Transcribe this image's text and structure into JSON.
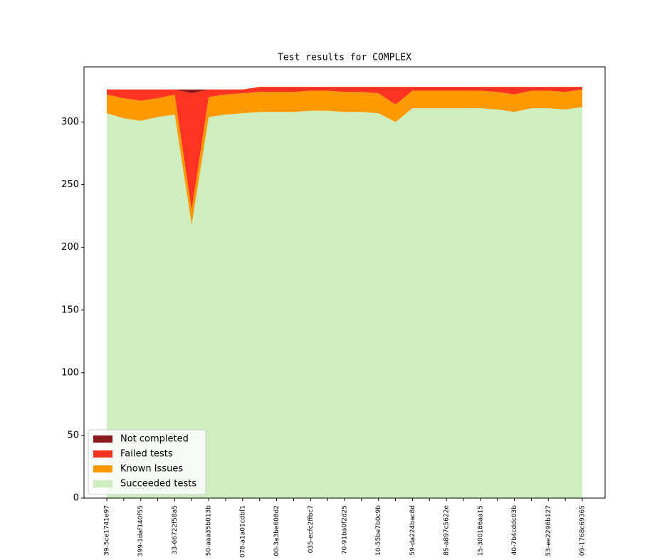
{
  "chart_data": {
    "type": "stackplot",
    "title": "Test results for COMPLEX",
    "categories": [
      "39-5ce1741e97",
      null,
      "399-1daf140f55",
      null,
      "33-66722f58a5",
      null,
      "50-aaa35b013b",
      null,
      "078-a1a01cdbf1",
      null,
      "00-3a3be608d2",
      null,
      "035-ecfc2ffbc7",
      null,
      "70-91ba0f2d25",
      null,
      "10-55be7b0c9b",
      null,
      "59-da224bac8d",
      null,
      "85-a897c5622e",
      null,
      "15-300186aa15",
      null,
      "40-7b4cddc03b",
      null,
      "53-ee2296b127",
      null,
      "09-1768c69365"
    ],
    "series": [
      {
        "name": "Succeeded tests",
        "color": "#ceeec0",
        "values": [
          307,
          303,
          301,
          304,
          306,
          218,
          304,
          306,
          307,
          308,
          308,
          308,
          309,
          309,
          308,
          308,
          307,
          300,
          311,
          311,
          311,
          311,
          311,
          310,
          308,
          311,
          311,
          310,
          312
        ]
      },
      {
        "name": "Known Issues",
        "color": "#ff9900",
        "values": [
          15,
          16,
          16,
          15,
          16,
          12,
          16,
          16,
          16,
          16,
          16,
          16,
          16,
          16,
          16,
          16,
          16,
          14,
          14,
          14,
          14,
          14,
          14,
          14,
          14,
          14,
          14,
          14,
          14
        ]
      },
      {
        "name": "Failed tests",
        "color": "#ff3322",
        "values": [
          4,
          7,
          9,
          7,
          4,
          93,
          6,
          4,
          3,
          4,
          4,
          4,
          3,
          3,
          4,
          4,
          5,
          14,
          3,
          3,
          3,
          3,
          3,
          4,
          6,
          3,
          3,
          4,
          2
        ]
      },
      {
        "name": "Not completed",
        "color": "#8b1a1a",
        "values": [
          0,
          0,
          0,
          0,
          0,
          3,
          0,
          0,
          0,
          0,
          0,
          0,
          0,
          0,
          0,
          0,
          0,
          0,
          0,
          0,
          0,
          0,
          0,
          0,
          0,
          0,
          0,
          0,
          0
        ]
      }
    ],
    "ylim": [
      0,
      344
    ],
    "yticks": [
      0,
      50,
      100,
      150,
      200,
      250,
      300
    ],
    "legend": "lower left"
  }
}
